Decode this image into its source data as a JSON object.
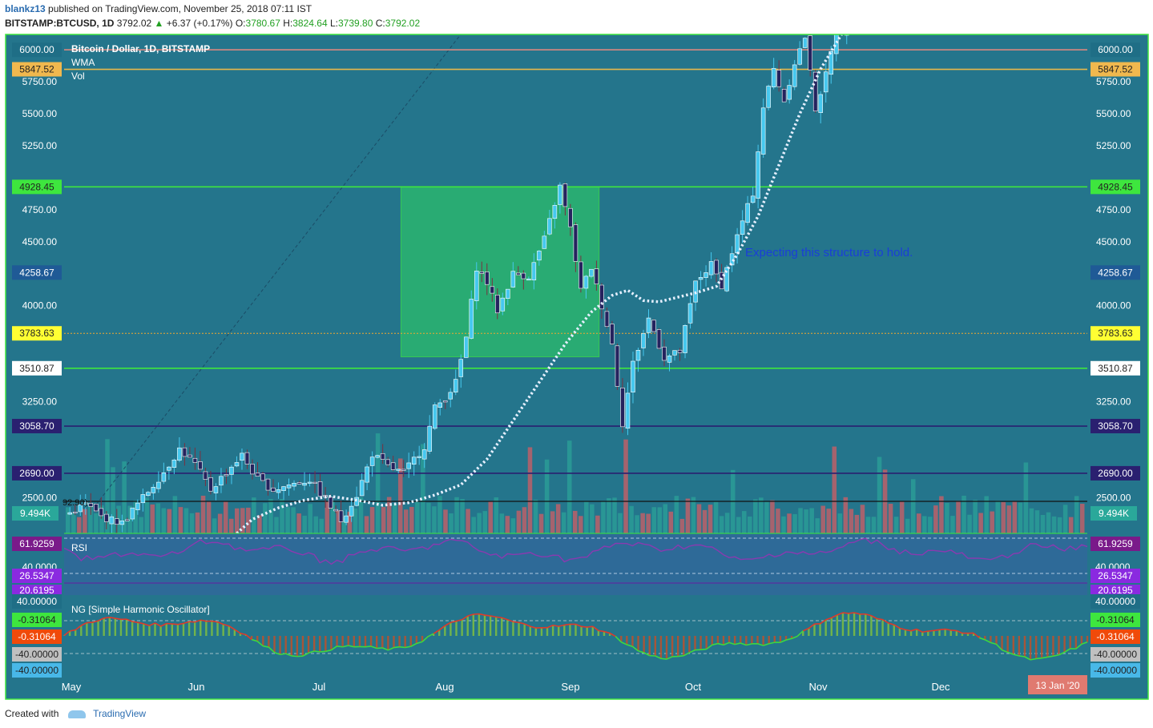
{
  "header": {
    "author": "blankz13",
    "published_text": "published on TradingView.com, November 25, 2018 07:11 IST",
    "symbol": "BITSTAMP:BTCUSD, 1D",
    "last": "3792.02",
    "change": "+6.37 (+0.17%)",
    "o_label": "O:",
    "o_val": "3780.67",
    "h_label": "H:",
    "h_val": "3824.64",
    "l_label": "L:",
    "l_val": "3739.80",
    "c_label": "C:",
    "c_val": "3792.02"
  },
  "legend": {
    "title": "Bitcoin / Dollar, 1D, BITSTAMP",
    "wma": "WMA",
    "vol": "Vol",
    "rsi": "RSI",
    "osc": "NG [Simple Harmonic Oscillator]",
    "partial_value": "92.90)"
  },
  "annotation": "Expecting this structure to hold.",
  "footer": {
    "created_with": "Created with",
    "brand": "TradingView"
  },
  "date_badge": "13 Jan '20",
  "colors": {
    "background": "#24758c",
    "frame": "#3ee63e",
    "box_fill": "#2bbd6b",
    "bull": "#46c8ef",
    "bear": "#25235e",
    "wma": "#e6f0ff",
    "annotation": "#1a3ed8"
  },
  "chart_data": {
    "type": "candlestick",
    "price_axis_ticks": [
      "6000.00",
      "5750.00",
      "5500.00",
      "5250.00",
      "4750.00",
      "4500.00",
      "4000.00",
      "3250.00",
      "2500.00"
    ],
    "price_range": [
      2220,
      6120
    ],
    "x_labels": [
      "May",
      "Jun",
      "Jul",
      "Aug",
      "Sep",
      "Oct",
      "Nov",
      "Dec"
    ],
    "levels": [
      {
        "value": "6000.00",
        "color": "#d98880",
        "label_bg": "#1f6e86",
        "label_fg": "#ffffff",
        "line": "solid"
      },
      {
        "value": "5847.52",
        "color": "#e8b84a",
        "label_bg": "#f0b84e",
        "label_fg": "#222222",
        "line": "solid"
      },
      {
        "value": "4928.45",
        "color": "#3ee63e",
        "label_bg": "#3ee63e",
        "label_fg": "#222222",
        "line": "solid"
      },
      {
        "value": "4258.67",
        "color": "#1f5a96",
        "label_bg": "#1f5a96",
        "label_fg": "#ffffff",
        "line": "none"
      },
      {
        "value": "3783.63",
        "color": "#f0a830",
        "label_bg": "#ffff33",
        "label_fg": "#222222",
        "line": "dotted"
      },
      {
        "value": "3510.87",
        "color": "#3ee63e",
        "label_bg": "#ffffff",
        "label_fg": "#222222",
        "line": "solid"
      },
      {
        "value": "3058.70",
        "color": "#2a2070",
        "label_bg": "#2a2070",
        "label_fg": "#ffffff",
        "line": "solid"
      },
      {
        "value": "2690.00",
        "color": "#2a2070",
        "label_bg": "#2a2070",
        "label_fg": "#ffffff",
        "line": "solid"
      }
    ],
    "volume_label": "9.494K",
    "rsi": {
      "label": "RSI",
      "value": "61.9259",
      "ticks": [
        "40.0000"
      ],
      "lower_band": "26.5347",
      "lower_partial": "20.6195"
    },
    "oscillator": {
      "ticks": [
        "40.00000",
        "-40.00000",
        "-40.00000"
      ],
      "values": [
        "-0.31064",
        "-0.31064"
      ]
    },
    "box": {
      "start_index": 64,
      "end_index": 102,
      "top": 4928.45,
      "bottom": 3600
    },
    "wma": [
      [
        32,
        2220
      ],
      [
        35,
        2330
      ],
      [
        40,
        2420
      ],
      [
        45,
        2480
      ],
      [
        50,
        2510
      ],
      [
        55,
        2480
      ],
      [
        60,
        2440
      ],
      [
        65,
        2460
      ],
      [
        70,
        2520
      ],
      [
        75,
        2600
      ],
      [
        80,
        2800
      ],
      [
        85,
        3100
      ],
      [
        90,
        3400
      ],
      [
        95,
        3700
      ],
      [
        100,
        3950
      ],
      [
        104,
        4080
      ],
      [
        107,
        4120
      ],
      [
        110,
        4040
      ],
      [
        113,
        4030
      ],
      [
        116,
        4060
      ],
      [
        120,
        4100
      ],
      [
        124,
        4150
      ],
      [
        128,
        4400
      ],
      [
        132,
        4700
      ],
      [
        136,
        5100
      ],
      [
        140,
        5500
      ],
      [
        144,
        5850
      ],
      [
        148,
        6120
      ]
    ],
    "price_keypoints": [
      [
        0,
        2380
      ],
      [
        3,
        2450
      ],
      [
        6,
        2350
      ],
      [
        10,
        2300
      ],
      [
        14,
        2500
      ],
      [
        18,
        2700
      ],
      [
        21,
        2880
      ],
      [
        24,
        2760
      ],
      [
        27,
        2560
      ],
      [
        30,
        2700
      ],
      [
        33,
        2830
      ],
      [
        36,
        2640
      ],
      [
        39,
        2560
      ],
      [
        42,
        2600
      ],
      [
        46,
        2640
      ],
      [
        49,
        2480
      ],
      [
        52,
        2320
      ],
      [
        55,
        2520
      ],
      [
        58,
        2840
      ],
      [
        61,
        2740
      ],
      [
        64,
        2690
      ],
      [
        66,
        2800
      ],
      [
        68,
        2900
      ],
      [
        70,
        3200
      ],
      [
        72,
        3280
      ],
      [
        74,
        3400
      ],
      [
        76,
        3750
      ],
      [
        78,
        4300
      ],
      [
        80,
        4180
      ],
      [
        82,
        3960
      ],
      [
        85,
        4250
      ],
      [
        88,
        4230
      ],
      [
        91,
        4520
      ],
      [
        93,
        4800
      ],
      [
        94,
        4930
      ],
      [
        96,
        4600
      ],
      [
        98,
        4120
      ],
      [
        100,
        4300
      ],
      [
        102,
        4000
      ],
      [
        104,
        3700
      ],
      [
        106,
        3080
      ],
      [
        108,
        3550
      ],
      [
        111,
        3900
      ],
      [
        114,
        3590
      ],
      [
        117,
        3640
      ],
      [
        120,
        4180
      ],
      [
        123,
        4320
      ],
      [
        125,
        4160
      ],
      [
        127,
        4420
      ],
      [
        129,
        4660
      ],
      [
        131,
        4880
      ],
      [
        133,
        5550
      ],
      [
        135,
        5850
      ],
      [
        137,
        5600
      ],
      [
        139,
        5900
      ],
      [
        141,
        6100
      ],
      [
        143,
        5540
      ],
      [
        145,
        5800
      ],
      [
        147,
        6150
      ]
    ]
  }
}
